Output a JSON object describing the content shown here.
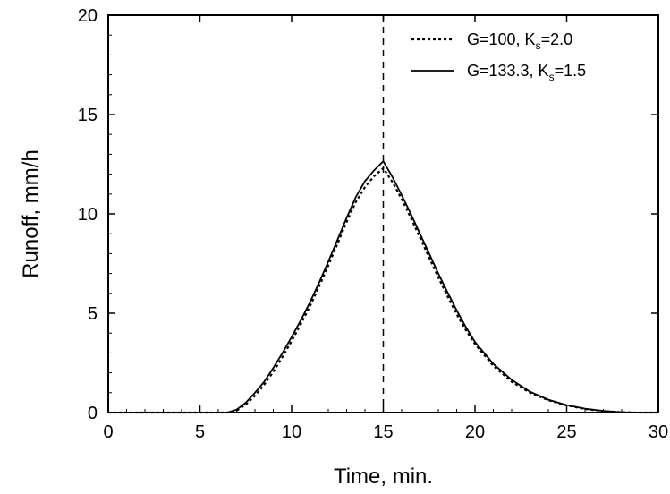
{
  "chart_data": {
    "type": "line",
    "xlabel": "Time, min.",
    "ylabel": "Runoff, mm/h",
    "xlim": [
      0,
      30
    ],
    "ylim": [
      0,
      20
    ],
    "xticks": [
      0,
      5,
      10,
      15,
      20,
      25,
      30
    ],
    "yticks": [
      0,
      5,
      10,
      15,
      20
    ],
    "xtick_labels": [
      "0",
      "5",
      "10",
      "15",
      "20",
      "25",
      "30"
    ],
    "ytick_labels": [
      "0",
      "5",
      "10",
      "15",
      "20"
    ],
    "grid": false,
    "legend": "top-right",
    "reference_line": {
      "x": 15,
      "style": "dashed"
    },
    "series": [
      {
        "name_main": "G=100,  K",
        "name_sub": "s",
        "name_tail": "=2.0",
        "style": "dotted",
        "x": [
          0,
          6.5,
          7,
          7.5,
          8,
          8.5,
          9,
          9.5,
          10,
          10.5,
          11,
          11.5,
          12,
          12.5,
          13,
          13.5,
          14,
          14.5,
          15,
          15.5,
          16,
          16.5,
          17,
          17.5,
          18,
          18.5,
          19,
          19.5,
          20,
          21,
          22,
          23,
          24,
          25,
          26,
          27,
          28,
          29,
          30
        ],
        "y": [
          0,
          0,
          0.1,
          0.4,
          0.85,
          1.4,
          2.05,
          2.8,
          3.6,
          4.45,
          5.35,
          6.35,
          7.4,
          8.5,
          9.6,
          10.6,
          11.35,
          11.9,
          12.3,
          11.6,
          10.75,
          9.8,
          8.8,
          7.8,
          6.8,
          5.85,
          4.95,
          4.15,
          3.45,
          2.35,
          1.55,
          1.0,
          0.62,
          0.36,
          0.18,
          0.07,
          0.02,
          0,
          0
        ]
      },
      {
        "name_main": "G=133.3, K",
        "name_sub": "s",
        "name_tail": "=1.5",
        "style": "solid",
        "x": [
          0,
          6.5,
          7,
          7.5,
          8,
          8.5,
          9,
          9.5,
          10,
          10.5,
          11,
          11.5,
          12,
          12.5,
          13,
          13.5,
          14,
          14.5,
          15,
          15.5,
          16,
          16.5,
          17,
          17.5,
          18,
          18.5,
          19,
          19.5,
          20,
          21,
          22,
          23,
          24,
          25,
          26,
          27,
          28,
          29,
          30
        ],
        "y": [
          0,
          0,
          0.15,
          0.5,
          1.0,
          1.55,
          2.25,
          3.0,
          3.8,
          4.65,
          5.55,
          6.55,
          7.6,
          8.7,
          9.8,
          10.85,
          11.65,
          12.2,
          12.65,
          11.85,
          10.95,
          10.0,
          9.0,
          8.0,
          7.0,
          6.05,
          5.15,
          4.3,
          3.55,
          2.45,
          1.65,
          1.05,
          0.65,
          0.38,
          0.2,
          0.08,
          0.02,
          0,
          0
        ]
      }
    ]
  }
}
